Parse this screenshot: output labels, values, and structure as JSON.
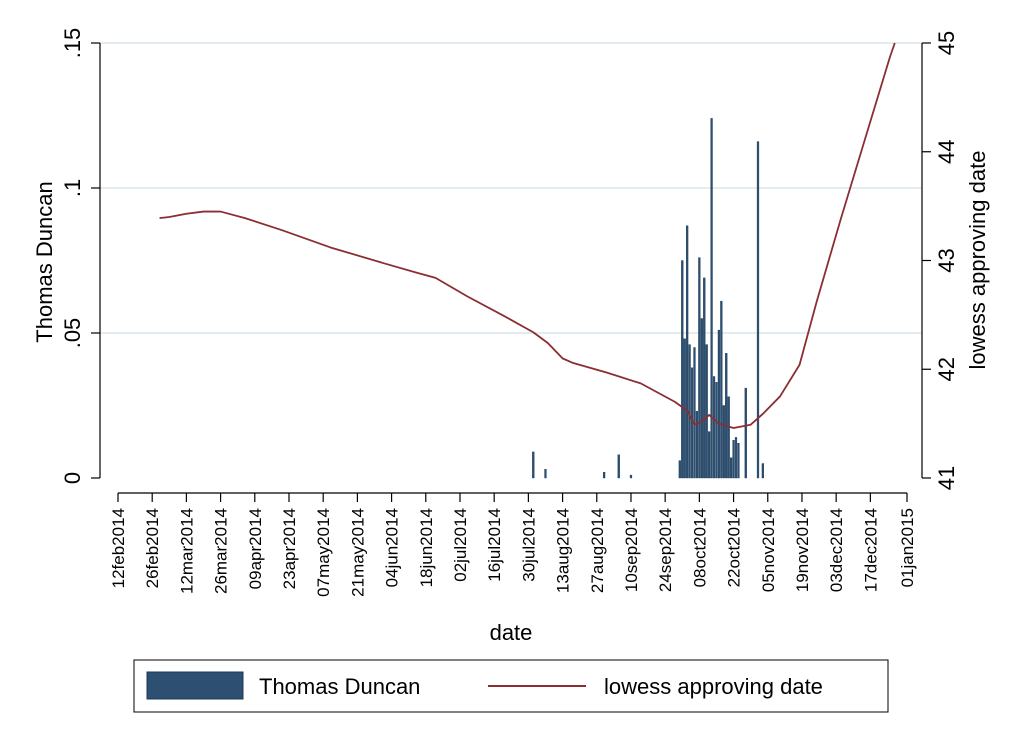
{
  "chart_data": {
    "type": "bar+line",
    "xlabel": "date",
    "y_left_label": "Thomas Duncan",
    "y_right_label": "lowess approving date",
    "x_ticks": [
      "12feb2014",
      "26feb2014",
      "12mar2014",
      "26mar2014",
      "09apr2014",
      "23apr2014",
      "07may2014",
      "21may2014",
      "04jun2014",
      "18jun2014",
      "02jul2014",
      "16jul2014",
      "30jul2014",
      "13aug2014",
      "27aug2014",
      "10sep2014",
      "24sep2014",
      "08oct2014",
      "22oct2014",
      "05nov2014",
      "19nov2014",
      "03dec2014",
      "17dec2014",
      "01jan2015"
    ],
    "y_left_ticks": [
      "0",
      ".05",
      ".1",
      ".15"
    ],
    "y_left_range": [
      0,
      0.15
    ],
    "y_right_ticks": [
      "41",
      "42",
      "43",
      "44",
      "45"
    ],
    "y_right_range": [
      41,
      45
    ],
    "grid": "horizontal, left axis",
    "legend_position": "bottom",
    "colors": {
      "bar": "#2c4f72",
      "line": "#8b2e34",
      "grid": "#e3ecf0"
    },
    "series": [
      {
        "name": "Thomas Duncan",
        "type": "bar",
        "axis": "left",
        "points": [
          {
            "date": "2014-08-01",
            "value": 0.009
          },
          {
            "date": "2014-08-06",
            "value": 0.003
          },
          {
            "date": "2014-08-30",
            "value": 0.002
          },
          {
            "date": "2014-09-05",
            "value": 0.008
          },
          {
            "date": "2014-09-10",
            "value": 0.001
          },
          {
            "date": "2014-09-30",
            "value": 0.006
          },
          {
            "date": "2014-10-01",
            "value": 0.075
          },
          {
            "date": "2014-10-02",
            "value": 0.048
          },
          {
            "date": "2014-10-03",
            "value": 0.087
          },
          {
            "date": "2014-10-04",
            "value": 0.046
          },
          {
            "date": "2014-10-05",
            "value": 0.038
          },
          {
            "date": "2014-10-06",
            "value": 0.045
          },
          {
            "date": "2014-10-07",
            "value": 0.023
          },
          {
            "date": "2014-10-08",
            "value": 0.076
          },
          {
            "date": "2014-10-09",
            "value": 0.055
          },
          {
            "date": "2014-10-10",
            "value": 0.069
          },
          {
            "date": "2014-10-11",
            "value": 0.046
          },
          {
            "date": "2014-10-12",
            "value": 0.016
          },
          {
            "date": "2014-10-13",
            "value": 0.124
          },
          {
            "date": "2014-10-14",
            "value": 0.035
          },
          {
            "date": "2014-10-15",
            "value": 0.033
          },
          {
            "date": "2014-10-16",
            "value": 0.051
          },
          {
            "date": "2014-10-17",
            "value": 0.061
          },
          {
            "date": "2014-10-18",
            "value": 0.025
          },
          {
            "date": "2014-10-19",
            "value": 0.043
          },
          {
            "date": "2014-10-20",
            "value": 0.028
          },
          {
            "date": "2014-10-21",
            "value": 0.007
          },
          {
            "date": "2014-10-22",
            "value": 0.013
          },
          {
            "date": "2014-10-23",
            "value": 0.014
          },
          {
            "date": "2014-10-24",
            "value": 0.012
          },
          {
            "date": "2014-10-27",
            "value": 0.031
          },
          {
            "date": "2014-11-01",
            "value": 0.116
          },
          {
            "date": "2014-11-03",
            "value": 0.005
          }
        ]
      },
      {
        "name": "lowess approving date",
        "type": "line",
        "axis": "right",
        "points": [
          {
            "date": "2014-03-01",
            "value": 43.39
          },
          {
            "date": "2014-03-05",
            "value": 43.4
          },
          {
            "date": "2014-03-12",
            "value": 43.43
          },
          {
            "date": "2014-03-19",
            "value": 43.45
          },
          {
            "date": "2014-03-26",
            "value": 43.45
          },
          {
            "date": "2014-04-05",
            "value": 43.39
          },
          {
            "date": "2014-04-20",
            "value": 43.28
          },
          {
            "date": "2014-05-10",
            "value": 43.12
          },
          {
            "date": "2014-05-31",
            "value": 42.98
          },
          {
            "date": "2014-06-14",
            "value": 42.89
          },
          {
            "date": "2014-06-22",
            "value": 42.84
          },
          {
            "date": "2014-07-05",
            "value": 42.67
          },
          {
            "date": "2014-07-20",
            "value": 42.49
          },
          {
            "date": "2014-08-01",
            "value": 42.34
          },
          {
            "date": "2014-08-07",
            "value": 42.24
          },
          {
            "date": "2014-08-13",
            "value": 42.1
          },
          {
            "date": "2014-08-17",
            "value": 42.06
          },
          {
            "date": "2014-08-31",
            "value": 41.97
          },
          {
            "date": "2014-09-14",
            "value": 41.87
          },
          {
            "date": "2014-09-28",
            "value": 41.7
          },
          {
            "date": "2014-10-03",
            "value": 41.62
          },
          {
            "date": "2014-10-06",
            "value": 41.49
          },
          {
            "date": "2014-10-09",
            "value": 41.52
          },
          {
            "date": "2014-10-12",
            "value": 41.58
          },
          {
            "date": "2014-10-16",
            "value": 41.5
          },
          {
            "date": "2014-10-22",
            "value": 41.46
          },
          {
            "date": "2014-10-29",
            "value": 41.49
          },
          {
            "date": "2014-11-03",
            "value": 41.59
          },
          {
            "date": "2014-11-10",
            "value": 41.75
          },
          {
            "date": "2014-11-18",
            "value": 42.04
          },
          {
            "date": "2014-11-25",
            "value": 42.62
          },
          {
            "date": "2014-12-05",
            "value": 43.39
          },
          {
            "date": "2014-12-15",
            "value": 44.13
          },
          {
            "date": "2014-12-25",
            "value": 44.87
          },
          {
            "date": "2014-12-27",
            "value": 45.0
          }
        ]
      }
    ]
  }
}
